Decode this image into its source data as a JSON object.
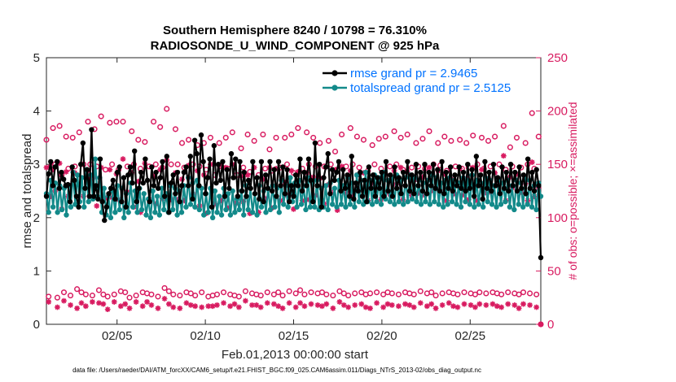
{
  "chart_data": {
    "type": "line",
    "title": "Southern Hemisphere 8240 / 10798 = 76.310%",
    "subtitle": "RADIOSONDE_U_WIND_COMPONENT @ 925 hPa",
    "xlabel": "Feb.01,2013 00:00:00 start",
    "ylabel": "rmse and totalspread",
    "ylabel_right": "# of obs: o=possible; ×=assimilated",
    "xlim": [
      1,
      29
    ],
    "ylim": [
      0,
      5
    ],
    "ylim_right": [
      0,
      250
    ],
    "x_ticks": [
      5,
      10,
      15,
      20,
      25
    ],
    "x_tick_labels": [
      "02/05",
      "02/10",
      "02/15",
      "02/20",
      "02/25"
    ],
    "y_ticks": [
      0,
      1,
      2,
      3,
      4,
      5
    ],
    "y_tick_labels": [
      "0",
      "1",
      "2",
      "3",
      "4",
      "5"
    ],
    "y_right_ticks": [
      0,
      50,
      100,
      150,
      200,
      250
    ],
    "y_right_tick_labels": [
      "0",
      "50",
      "100",
      "150",
      "200",
      "250"
    ],
    "legend_position": "top-right",
    "footnote": "data file: /Users/raeder/DAI/ATM_forcXX/CAM6_setup/f.e21.FHIST_BGC.f09_025.CAM6assim.011/Diags_NTrS_2013-02/obs_diag_output.nc",
    "colors": {
      "rmse": "#000000",
      "spread": "#138a8a",
      "obs": "#d81b60",
      "axis": "#262626"
    },
    "series": [
      {
        "name": "rmse",
        "legend": "rmse grand pr = 2.9465",
        "legend_color": "#0072ff",
        "values": [
          2.4,
          2.82,
          3.05,
          2.6,
          2.95,
          3.05,
          2.55,
          2.85,
          2.72,
          2.6,
          2.62,
          2.3,
          2.95,
          2.7,
          2.4,
          2.2,
          3.0,
          3.4,
          2.55,
          2.9,
          2.4,
          3.65,
          2.4,
          2.6,
          2.35,
          3.1,
          2.3,
          1.95,
          2.2,
          2.45,
          2.55,
          2.7,
          2.35,
          2.85,
          2.95,
          2.3,
          2.75,
          2.2,
          2.8,
          2.95,
          2.65,
          3.25,
          2.3,
          2.55,
          2.85,
          2.65,
          3.1,
          2.7,
          2.3,
          2.95,
          2.6,
          2.85,
          2.55,
          2.75,
          3.05,
          2.4,
          3.15,
          2.1,
          2.65,
          2.8,
          2.45,
          2.85,
          2.3,
          2.6,
          2.85,
          2.95,
          2.6,
          3.15,
          2.35,
          3.45,
          3.2,
          2.6,
          3.55,
          3.05,
          2.45,
          2.75,
          3.1,
          2.2,
          3.35,
          2.65,
          3.0,
          2.7,
          3.05,
          2.4,
          2.9,
          2.55,
          3.2,
          2.75,
          3.1,
          2.4,
          3.05,
          2.5,
          2.85,
          2.4,
          2.7,
          2.55,
          3.05,
          2.45,
          2.75,
          2.35,
          3.05,
          2.3,
          2.8,
          2.55,
          3.05,
          2.5,
          2.9,
          2.4,
          3.05,
          2.6,
          2.95,
          2.45,
          2.9,
          2.3,
          2.6,
          2.4,
          2.8,
          2.6,
          3.1,
          2.5,
          2.85,
          2.6,
          3.1,
          2.7,
          2.3,
          3.4,
          2.6,
          3.0,
          2.2,
          2.75,
          2.95,
          3.2,
          2.45,
          2.9,
          2.7,
          2.85,
          3.05,
          2.5,
          2.9,
          2.55,
          2.8,
          2.4,
          3.15,
          2.35,
          2.65,
          2.5,
          2.85,
          2.4,
          2.7,
          2.3,
          2.95,
          2.55,
          2.8,
          2.4,
          2.75,
          2.55,
          2.85,
          2.4,
          3.05,
          2.5,
          2.8,
          2.4,
          2.95,
          2.55,
          2.75,
          2.45,
          2.85,
          2.6,
          3.05,
          2.5,
          2.8,
          2.45,
          3.0,
          2.6,
          2.85,
          2.5,
          3.0,
          2.45,
          2.85,
          2.6,
          3.0,
          2.55,
          2.9,
          2.5,
          3.05,
          2.45,
          2.85,
          2.55,
          2.95,
          2.5,
          2.8,
          2.6,
          2.95,
          2.55,
          2.85,
          2.5,
          3.0,
          2.55,
          2.9,
          2.4,
          3.15,
          2.6,
          2.8,
          2.35,
          3.05,
          2.55,
          2.85,
          2.5,
          3.0,
          2.6,
          2.75,
          2.45,
          2.95,
          2.55,
          2.85,
          2.5,
          3.0,
          2.6,
          2.85,
          2.5,
          2.95,
          2.55,
          2.8,
          2.45,
          3.1,
          2.55,
          2.85,
          2.5,
          2.9,
          2.6,
          1.25
        ]
      },
      {
        "name": "totalspread",
        "legend": "totalspread grand pr = 2.5125",
        "legend_color": "#0072ff",
        "values": [
          2.45,
          2.1,
          2.7,
          2.2,
          2.65,
          2.1,
          2.6,
          2.15,
          2.55,
          2.05,
          2.6,
          2.2,
          2.85,
          2.25,
          2.8,
          2.3,
          2.75,
          2.2,
          2.9,
          2.3,
          2.8,
          2.35,
          3.1,
          2.4,
          2.75,
          2.1,
          2.55,
          2.05,
          2.4,
          2.0,
          2.5,
          2.1,
          2.6,
          2.15,
          2.55,
          2.0,
          2.45,
          2.1,
          2.65,
          2.2,
          2.5,
          2.1,
          2.55,
          2.15,
          2.45,
          2.05,
          2.35,
          2.0,
          2.5,
          2.1,
          2.4,
          2.05,
          2.55,
          2.15,
          2.45,
          2.1,
          2.6,
          2.15,
          2.55,
          2.05,
          2.5,
          2.1,
          2.6,
          2.2,
          2.75,
          2.25,
          2.65,
          2.2,
          2.7,
          2.15,
          2.55,
          2.05,
          2.45,
          2.1,
          2.55,
          2.0,
          2.5,
          2.1,
          2.4,
          2.05,
          2.55,
          2.15,
          2.45,
          2.05,
          2.5,
          2.1,
          2.35,
          2.15,
          2.5,
          2.05,
          2.6,
          2.15,
          2.55,
          2.1,
          2.45,
          2.05,
          2.6,
          2.2,
          2.5,
          2.1,
          2.55,
          2.15,
          2.6,
          2.2,
          2.55,
          2.1,
          2.7,
          2.25,
          2.6,
          2.2,
          2.75,
          2.3,
          2.65,
          2.2,
          2.7,
          2.25,
          2.6,
          2.15,
          2.75,
          2.2,
          2.65,
          2.2,
          2.7,
          2.15,
          2.55,
          2.2,
          2.6,
          2.15,
          2.65,
          2.25,
          2.55,
          2.2,
          2.7,
          2.25,
          2.6,
          2.2,
          2.75,
          2.25,
          2.65,
          2.2,
          2.8,
          2.3,
          2.7,
          2.25,
          2.85,
          2.3,
          2.7,
          2.25,
          2.8,
          2.3,
          2.75,
          2.25,
          2.85,
          2.35,
          2.7,
          2.3,
          2.75,
          2.25,
          2.8,
          2.3,
          2.7,
          2.25,
          2.75,
          2.3,
          2.8,
          2.35,
          2.75,
          2.3,
          2.7,
          2.25,
          2.65,
          2.3,
          2.7,
          2.25,
          2.8,
          2.3,
          2.75,
          2.25,
          2.65,
          2.2,
          2.7,
          2.25,
          2.75,
          2.3,
          2.7,
          2.25,
          2.65,
          2.2,
          2.75,
          2.3,
          2.7,
          2.25,
          2.8,
          2.2,
          2.7,
          2.25,
          2.65,
          2.2,
          2.75,
          2.3,
          2.7,
          2.25,
          2.6,
          2.2,
          2.7,
          2.25,
          2.65,
          2.3,
          2.7,
          2.2,
          2.6,
          2.15,
          2.7,
          2.25,
          2.65,
          2.2,
          2.75,
          2.25,
          2.7,
          2.2,
          2.6,
          2.15,
          2.65,
          2.4
        ]
      },
      {
        "name": "obs_possible",
        "axis": "right",
        "values": [
          173,
          26,
          148,
          184,
          150,
          25,
          186,
          140,
          30,
          176,
          146,
          27,
          175,
          148,
          33,
          180,
          30,
          150,
          28,
          190,
          150,
          27,
          183,
          148,
          32,
          195,
          28,
          145,
          26,
          189,
          150,
          28,
          190,
          145,
          31,
          190,
          30,
          148,
          25,
          181,
          150,
          27,
          173,
          146,
          30,
          171,
          29,
          148,
          28,
          190,
          150,
          26,
          185,
          147,
          34,
          202,
          31,
          150,
          28,
          183,
          150,
          27,
          170,
          147,
          30,
          173,
          29,
          150,
          27,
          168,
          148,
          30,
          170,
          145,
          26,
          175,
          27,
          140,
          28,
          170,
          148,
          30,
          175,
          146,
          28,
          180,
          27,
          140,
          26,
          165,
          147,
          31,
          178,
          143,
          29,
          172,
          28,
          140,
          27,
          178,
          146,
          30,
          164,
          144,
          28,
          175,
          30,
          147,
          27,
          175,
          150,
          31,
          178,
          142,
          29,
          184,
          32,
          146,
          28,
          180,
          150,
          30,
          175,
          148,
          29,
          170,
          30,
          148,
          28,
          172,
          150,
          27,
          162,
          145,
          31,
          178,
          29,
          148,
          27,
          184,
          150,
          29,
          176,
          147,
          30,
          173,
          28,
          144,
          29,
          168,
          150,
          30,
          174,
          146,
          28,
          176,
          30,
          148,
          29,
          181,
          150,
          28,
          175,
          145,
          30,
          178,
          29,
          147,
          28,
          170,
          148,
          31,
          174,
          146,
          29,
          181,
          30,
          150,
          27,
          170,
          149,
          29,
          176,
          144,
          30,
          172,
          29,
          148,
          28,
          173,
          146,
          30,
          170,
          147,
          29,
          177,
          28,
          150,
          30,
          175,
          146,
          29,
          172,
          148,
          30,
          176,
          29,
          150,
          28,
          186,
          145,
          30,
          166,
          148,
          29,
          175,
          28,
          147,
          30,
          170,
          150,
          29,
          198,
          146,
          28,
          176,
          0
        ]
      },
      {
        "name": "obs_assimilated",
        "axis": "right",
        "values": [
          147,
          21,
          120,
          145,
          125,
          16,
          151,
          108,
          22,
          143,
          120,
          18,
          132,
          142,
          15,
          131,
          20,
          120,
          17,
          144,
          136,
          21,
          138,
          111,
          20,
          147,
          19,
          118,
          14,
          145,
          119,
          21,
          141,
          117,
          17,
          155,
          19,
          124,
          15,
          142,
          110,
          21,
          134,
          105,
          17,
          151,
          21,
          117,
          18,
          139,
          113,
          15,
          145,
          118,
          24,
          154,
          19,
          117,
          16,
          142,
          117,
          15,
          136,
          116,
          20,
          149,
          18,
          122,
          17,
          144,
          111,
          16,
          140,
          104,
          17,
          150,
          17,
          113,
          18,
          149,
          116,
          20,
          147,
          109,
          17,
          150,
          19,
          114,
          16,
          139,
          115,
          22,
          140,
          104,
          18,
          147,
          18,
          105,
          16,
          136,
          118,
          20,
          147,
          109,
          19,
          146,
          17,
          116,
          15,
          133,
          121,
          20,
          144,
          108,
          16,
          143,
          20,
          116,
          17,
          142,
          117,
          19,
          138,
          121,
          18,
          137,
          17,
          113,
          19,
          131,
          124,
          15,
          145,
          107,
          21,
          148,
          18,
          123,
          16,
          144,
          121,
          18,
          140,
          126,
          19,
          142,
          16,
          116,
          15,
          134,
          131,
          20,
          137,
          117,
          16,
          141,
          19,
          122,
          18,
          144,
          131,
          17,
          147,
          117,
          19,
          143,
          18,
          121,
          16,
          136,
          123,
          20,
          138,
          121,
          17,
          147,
          19,
          125,
          15,
          144,
          126,
          18,
          141,
          116,
          20,
          136,
          17,
          122,
          16,
          146,
          121,
          19,
          137,
          117,
          18,
          147,
          16,
          116,
          19,
          145,
          123,
          18,
          137,
          124,
          19,
          142,
          17,
          131,
          16,
          158,
          116,
          19,
          138,
          128,
          18,
          141,
          15,
          124,
          19,
          132,
          116,
          18,
          152,
          120,
          16,
          128,
          0
        ]
      }
    ]
  }
}
